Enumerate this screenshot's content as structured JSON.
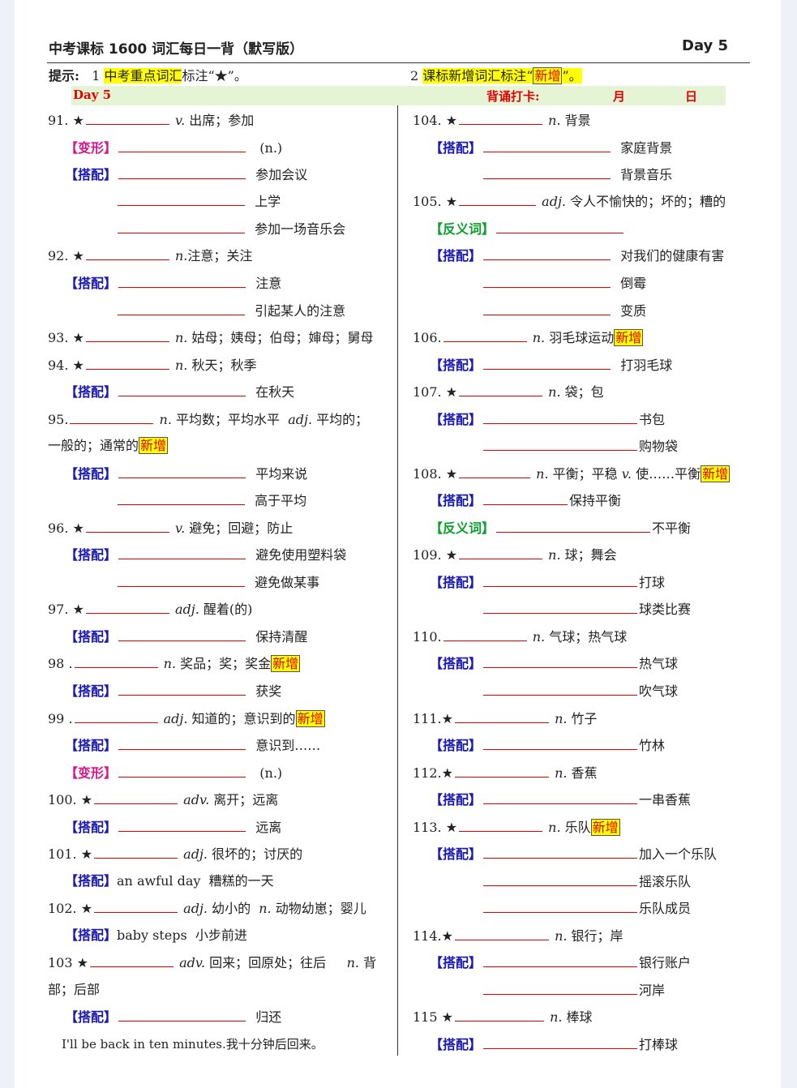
{
  "header": {
    "title": "中考课标 1600 词汇每日一背（默写版）",
    "day": "Day 5"
  },
  "hint": {
    "label": "提示:",
    "n1": "1",
    "key_words": "中考重点词汇",
    "mark_star_text": "标注“★”。",
    "n2": "2",
    "new_words": "课标新增词汇标注“",
    "xinzeng": "新增",
    "end": "”。"
  },
  "band": {
    "day": "Day 5",
    "checkin": "背诵打卡:",
    "month": "月",
    "date": "日"
  },
  "tags": {
    "dapei": "【搭配】",
    "bianxing": "【变形】",
    "fanyici": "【反义词】",
    "xinzeng": "新增"
  },
  "left": {
    "w91": {
      "num": "91. ★",
      "pos": "v.",
      "mean": "出席；参加",
      "var": "(n.)",
      "c1": "参加会议",
      "c2": "上学",
      "c3": "参加一场音乐会"
    },
    "w92": {
      "num": "92. ★",
      "pos": "n.",
      "mean": "注意；关注",
      "c1": "注意",
      "c2": "引起某人的注意"
    },
    "w93": {
      "num": "93. ★",
      "pos": "n.",
      "mean": "姑母；姨母；伯母；婶母；舅母"
    },
    "w94": {
      "num": "94. ★",
      "pos": "n.",
      "mean": "秋天；秋季",
      "c1": "在秋天"
    },
    "w95": {
      "num": "95.",
      "pos": "n.",
      "mean": "平均数；平均水平",
      "pos2": "adj.",
      "mean2": "平均的；",
      "cont": "一般的；通常的",
      "c1": "平均来说",
      "c2": "高于平均"
    },
    "w96": {
      "num": "96. ★",
      "pos": "v.",
      "mean": "避免；回避；防止",
      "c1": "避免使用塑料袋",
      "c2": "避免做某事"
    },
    "w97": {
      "num": "97. ★",
      "pos": "adj.",
      "mean": "醒着(的)",
      "c1": "保持清醒"
    },
    "w98": {
      "num": "98 .",
      "pos": "n.",
      "mean": "奖品；奖；奖金",
      "c1": "获奖"
    },
    "w99": {
      "num": "99 .",
      "pos": "adj.",
      "mean": "知道的；意识到的",
      "c1": "意识到……",
      "var": "(n.)"
    },
    "w100": {
      "num": "100. ★",
      "pos": "adv.",
      "mean": "离开；远离",
      "c1": "远离"
    },
    "w101": {
      "num": "101. ★",
      "pos": "adj.",
      "mean": "很坏的；讨厌的",
      "ex": "an awful day",
      "exm": "糟糕的一天"
    },
    "w102": {
      "num": "102. ★",
      "pos": "adj.",
      "mean": "幼小的",
      "pos2": "n.",
      "mean2": "动物幼崽；婴儿",
      "ex": "baby steps",
      "exm": "小步前进"
    },
    "w103": {
      "num": "103 ★",
      "pos": "adv.",
      "mean": "回来；回原处；往后",
      "pos2": "n.",
      "mean2": "背",
      "cont": "部；后部",
      "c1": "归还",
      "sent": "I'll be back in ten minutes.我十分钟后回来。"
    }
  },
  "right": {
    "w104": {
      "num": "104. ★",
      "pos": "n.",
      "mean": "背景",
      "c1": "家庭背景",
      "c2": "背景音乐"
    },
    "w105": {
      "num": "105. ★",
      "pos": "adj.",
      "mean": "令人不愉快的；坏的；糟的",
      "c1": "对我们的健康有害",
      "c2": "倒霉",
      "c3": "变质"
    },
    "w106": {
      "num": "106.",
      "pos": "n.",
      "mean": "羽毛球运动",
      "c1": "打羽毛球"
    },
    "w107": {
      "num": "107. ★",
      "pos": "n.",
      "mean": "袋；包",
      "c1": "书包",
      "c2": "购物袋"
    },
    "w108": {
      "num": "108. ★",
      "pos": "n.",
      "mean": "平衡；平稳",
      "pos2": "v.",
      "mean2": "使……平衡",
      "c1": "保持平衡",
      "a1": "不平衡"
    },
    "w109": {
      "num": "109. ★",
      "pos": "n.",
      "mean": "球；舞会",
      "c1": "打球",
      "c2": "球类比赛"
    },
    "w110": {
      "num": "110.",
      "pos": "n.",
      "mean": "气球；热气球",
      "c1": "热气球",
      "c2": "吹气球"
    },
    "w111": {
      "num": "111.★",
      "pos": "n.",
      "mean": "竹子",
      "c1": "竹林"
    },
    "w112": {
      "num": "112.★",
      "pos": "n.",
      "mean": "香蕉",
      "c1": "一串香蕉"
    },
    "w113": {
      "num": "113. ★",
      "pos": "n.",
      "mean": "乐队",
      "c1": "加入一个乐队",
      "c2": "摇滚乐队",
      "c3": "乐队成员"
    },
    "w114": {
      "num": "114.★",
      "pos": "n.",
      "mean": "银行；岸",
      "c1": "银行账户",
      "c2": "河岸"
    },
    "w115": {
      "num": "115 ★",
      "pos": "n.",
      "mean": "棒球",
      "c1": "打棒球"
    }
  }
}
